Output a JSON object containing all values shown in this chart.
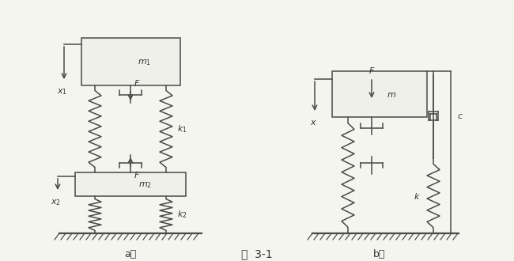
{
  "title": "图  3-1",
  "bg_color": "#f5f5f0",
  "line_color": "#4a4a4a",
  "text_color": "#333333",
  "fig_width": 6.5,
  "fig_height": 3.3,
  "label_a": "a）",
  "label_b": "b）"
}
